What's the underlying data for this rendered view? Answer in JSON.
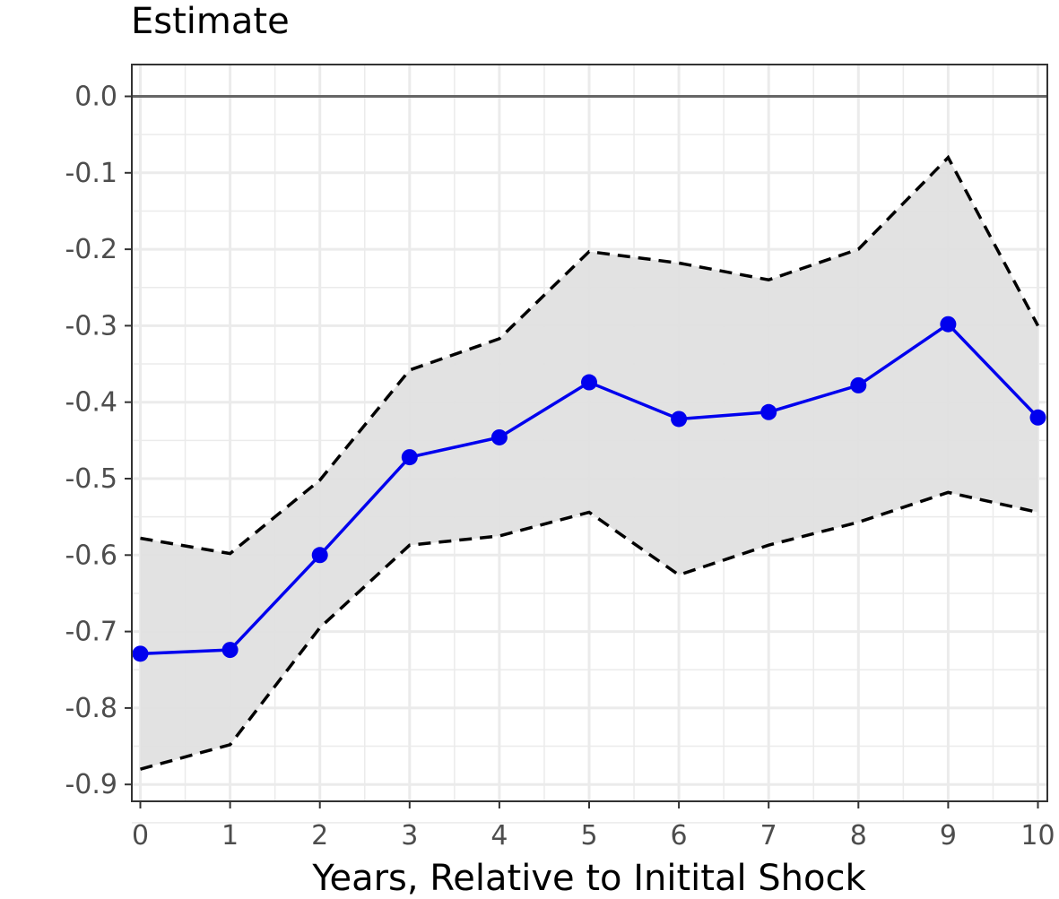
{
  "chart_data": {
    "type": "line",
    "ylabel": "Estimate",
    "xlabel": "Years, Relative to Initital Shock",
    "x": [
      0,
      1,
      2,
      3,
      4,
      5,
      6,
      7,
      8,
      9,
      10
    ],
    "xlim": [
      0,
      10
    ],
    "ylim": [
      -0.9,
      0.0
    ],
    "x_ticks": [
      "0",
      "1",
      "2",
      "3",
      "4",
      "5",
      "6",
      "7",
      "8",
      "9",
      "10"
    ],
    "y_ticks": [
      "0.0",
      "-0.1",
      "-0.2",
      "-0.3",
      "-0.4",
      "-0.5",
      "-0.6",
      "-0.7",
      "-0.8",
      "-0.9"
    ],
    "grid": true,
    "reference_line": 0.0,
    "series": [
      {
        "role": "point_estimate",
        "style": "solid line with points",
        "color": "#0000ee",
        "values": [
          -0.729,
          -0.724,
          -0.6,
          -0.472,
          -0.446,
          -0.374,
          -0.422,
          -0.413,
          -0.378,
          -0.298,
          -0.42
        ]
      },
      {
        "role": "upper_bound",
        "style": "dashed",
        "color": "#000000",
        "values": [
          -0.578,
          -0.598,
          -0.502,
          -0.358,
          -0.317,
          -0.203,
          -0.218,
          -0.24,
          -0.2,
          -0.08,
          -0.3
        ]
      },
      {
        "role": "lower_bound",
        "style": "dashed",
        "color": "#000000",
        "values": [
          -0.88,
          -0.848,
          -0.695,
          -0.587,
          -0.575,
          -0.544,
          -0.626,
          -0.587,
          -0.557,
          -0.518,
          -0.544
        ]
      }
    ],
    "band_fill": "#e0e0e0"
  }
}
